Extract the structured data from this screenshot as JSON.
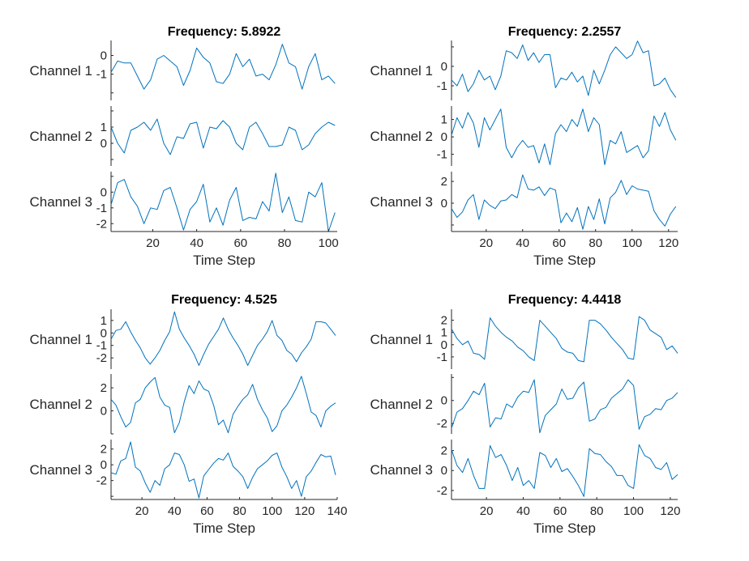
{
  "chart_data": [
    {
      "type": "line",
      "title": "Frequency: 5.8922",
      "xlabel": "Time Step",
      "xlim": [
        1,
        104
      ],
      "xticks": [
        20,
        40,
        60,
        80,
        100
      ],
      "xtick_labels": [
        "20",
        "40",
        "60",
        "80",
        "100"
      ],
      "time_steps": {
        "start": 1,
        "step": 3
      },
      "series": [
        {
          "name": "Channel 1",
          "ylim": [
            -2.4,
            0.8
          ],
          "yticks": [
            0,
            -1,
            -2
          ],
          "ytick_labels": [
            "0",
            "-1",
            ""
          ],
          "values": [
            -0.9,
            -0.3,
            -0.4,
            -0.4,
            -1.1,
            -1.8,
            -1.3,
            -0.2,
            0.0,
            -0.3,
            -0.6,
            -1.6,
            -0.8,
            0.4,
            -0.1,
            -0.4,
            -1.4,
            -1.5,
            -1.0,
            0.1,
            -0.6,
            -0.2,
            -1.1,
            -1.0,
            -1.3,
            -0.5,
            0.6,
            -0.4,
            -0.6,
            -1.8,
            -0.6,
            0.1,
            -1.3,
            -1.1,
            -1.5
          ]
        },
        {
          "name": "Channel 2",
          "ylim": [
            -1.4,
            2.3
          ],
          "yticks": [
            2,
            1,
            0,
            -1
          ],
          "ytick_labels": [
            "",
            "1",
            "0",
            ""
          ],
          "values": [
            1.0,
            0.0,
            -0.6,
            0.8,
            1.0,
            1.3,
            0.8,
            1.5,
            0.0,
            -0.7,
            0.4,
            0.3,
            1.2,
            1.3,
            -0.3,
            1.0,
            0.9,
            1.4,
            1.0,
            0.0,
            -0.4,
            1.0,
            1.3,
            0.6,
            -0.2,
            -0.2,
            -0.1,
            1.0,
            0.8,
            -0.4,
            -0.1,
            0.6,
            1.0,
            1.3,
            1.1
          ]
        },
        {
          "name": "Channel 3",
          "ylim": [
            -2.5,
            1.3
          ],
          "yticks": [
            1,
            0,
            -1,
            -2
          ],
          "ytick_labels": [
            "",
            "0",
            "-1",
            "-2"
          ],
          "values": [
            -0.8,
            0.6,
            0.8,
            -0.3,
            -0.9,
            -2.0,
            -1.0,
            -1.1,
            0.1,
            0.3,
            -1.0,
            -2.4,
            -1.1,
            -0.6,
            0.5,
            -1.9,
            -1.0,
            -2.1,
            -0.5,
            0.3,
            -1.8,
            -1.6,
            -1.7,
            -0.6,
            -1.2,
            1.2,
            -1.3,
            -0.3,
            -1.8,
            -1.9,
            0.0,
            -0.3,
            0.6,
            -2.5,
            -1.3
          ]
        }
      ]
    },
    {
      "type": "line",
      "title": "Frequency: 2.2557",
      "xlabel": "Time Step",
      "xlim": [
        1,
        125
      ],
      "xticks": [
        20,
        40,
        60,
        80,
        100,
        120
      ],
      "xtick_labels": [
        "20",
        "40",
        "60",
        "80",
        "100",
        "120"
      ],
      "time_steps": {
        "start": 1,
        "step": 3
      },
      "series": [
        {
          "name": "Channel 1",
          "ylim": [
            -1.75,
            1.33
          ],
          "yticks": [
            1,
            0,
            -1
          ],
          "ytick_labels": [
            "",
            "0",
            "-1"
          ],
          "values": [
            -0.7,
            -1.0,
            -0.4,
            -1.3,
            -0.9,
            -0.2,
            -0.7,
            -0.5,
            -1.2,
            -0.5,
            0.8,
            0.7,
            0.4,
            1.1,
            0.3,
            0.7,
            0.2,
            0.6,
            0.6,
            -1.1,
            -0.6,
            -0.7,
            -0.3,
            -0.8,
            -0.5,
            -1.5,
            -0.2,
            -0.9,
            -0.2,
            0.6,
            1.0,
            0.7,
            0.4,
            0.6,
            1.3,
            0.7,
            0.8,
            -1.0,
            -0.9,
            -0.6,
            -1.2,
            -1.6
          ]
        },
        {
          "name": "Channel 2",
          "ylim": [
            -1.67,
            1.77
          ],
          "yticks": [
            1,
            0,
            -1
          ],
          "ytick_labels": [
            "1",
            "0",
            "-1"
          ],
          "values": [
            0.1,
            1.1,
            0.5,
            1.4,
            0.8,
            -0.6,
            1.1,
            0.4,
            1.0,
            1.6,
            -0.6,
            -1.2,
            -0.6,
            -0.2,
            -0.6,
            -0.5,
            -1.5,
            -0.4,
            -1.6,
            0.2,
            0.7,
            0.3,
            1.0,
            0.6,
            1.6,
            0.3,
            1.1,
            0.7,
            -1.6,
            -0.2,
            -0.4,
            0.3,
            -0.9,
            -0.7,
            -0.5,
            -1.2,
            -0.8,
            1.2,
            0.6,
            1.4,
            0.4,
            -0.2
          ]
        },
        {
          "name": "Channel 3",
          "ylim": [
            -2.6,
            2.9
          ],
          "yticks": [
            2,
            0,
            -2
          ],
          "ytick_labels": [
            "2",
            "0",
            ""
          ],
          "values": [
            -0.5,
            -1.3,
            -0.8,
            0.3,
            0.8,
            -1.5,
            0.3,
            -0.2,
            -0.5,
            0.2,
            0.3,
            0.8,
            0.5,
            2.6,
            1.3,
            1.2,
            1.5,
            0.7,
            1.4,
            1.2,
            -1.8,
            -0.9,
            -1.7,
            -0.4,
            -2.4,
            -0.3,
            -1.5,
            0.4,
            -1.9,
            0.5,
            1.0,
            2.1,
            0.8,
            1.6,
            1.3,
            1.2,
            1.1,
            -0.7,
            -1.5,
            -2.1,
            -1.0,
            -0.3
          ]
        }
      ]
    },
    {
      "type": "line",
      "title": "Frequency: 4.525",
      "xlabel": "Time Step",
      "xlim": [
        1,
        140
      ],
      "xticks": [
        20,
        40,
        60,
        80,
        100,
        120,
        140
      ],
      "xtick_labels": [
        "20",
        "40",
        "60",
        "80",
        "100",
        "120",
        "140"
      ],
      "time_steps": {
        "start": 1,
        "step": 3
      },
      "series": [
        {
          "name": "Channel 1",
          "ylim": [
            -2.9,
            1.9
          ],
          "yticks": [
            1,
            0,
            -1,
            -2
          ],
          "ytick_labels": [
            "1",
            "0",
            "-1",
            "-2"
          ],
          "values": [
            -0.5,
            0.2,
            0.3,
            0.9,
            0.1,
            -0.6,
            -1.2,
            -2.0,
            -2.5,
            -2.0,
            -1.4,
            -0.6,
            0.1,
            1.7,
            0.3,
            -0.4,
            -1.0,
            -1.7,
            -2.6,
            -1.7,
            -0.9,
            -0.3,
            0.3,
            1.2,
            0.3,
            -0.4,
            -1.0,
            -1.7,
            -2.6,
            -1.8,
            -1.0,
            -0.5,
            0.1,
            1.0,
            -0.2,
            -0.6,
            -1.4,
            -1.7,
            -2.3,
            -1.6,
            -1.1,
            -0.5,
            0.9,
            0.9,
            0.8,
            0.3,
            -0.2
          ]
        },
        {
          "name": "Channel 2",
          "ylim": [
            -2.0,
            3.2
          ],
          "yticks": [
            2,
            0,
            -2
          ],
          "ytick_labels": [
            "2",
            "0",
            ""
          ],
          "values": [
            1.0,
            0.5,
            -0.5,
            -1.4,
            -1.0,
            0.7,
            1.0,
            2.0,
            2.5,
            2.9,
            1.2,
            0.5,
            0.3,
            -1.9,
            -1.0,
            0.8,
            2.2,
            1.5,
            2.6,
            1.9,
            1.7,
            0.5,
            -1.2,
            -0.8,
            -1.9,
            -0.3,
            0.4,
            1.0,
            1.4,
            2.3,
            1.0,
            0.1,
            -0.6,
            -1.8,
            -1.3,
            0.0,
            0.5,
            1.2,
            2.0,
            3.0,
            1.5,
            -0.1,
            -0.4,
            -1.4,
            0.0,
            0.4,
            0.7
          ]
        },
        {
          "name": "Channel 3",
          "ylim": [
            -4.4,
            3.2
          ],
          "yticks": [
            2,
            0,
            -2,
            -4
          ],
          "ytick_labels": [
            "2",
            "0",
            "-2",
            ""
          ],
          "values": [
            -1.0,
            -1.2,
            0.5,
            0.8,
            2.9,
            -0.3,
            -0.8,
            -2.3,
            -3.5,
            -2.0,
            -2.6,
            -0.5,
            0.0,
            1.5,
            1.3,
            0.0,
            -2.1,
            -1.8,
            -4.2,
            -1.4,
            -0.6,
            0.2,
            0.8,
            0.6,
            1.5,
            -0.2,
            -0.8,
            -1.5,
            -3.0,
            -1.6,
            -0.5,
            0.0,
            0.5,
            1.2,
            1.5,
            -0.3,
            -1.5,
            -3.0,
            -2.0,
            -4.0,
            -1.5,
            -0.8,
            0.3,
            1.3,
            1.0,
            1.1,
            -1.3
          ]
        }
      ]
    },
    {
      "type": "line",
      "title": "Frequency: 4.4418",
      "xlabel": "Time Step",
      "xlim": [
        1,
        124
      ],
      "xticks": [
        20,
        40,
        60,
        80,
        100,
        120
      ],
      "xtick_labels": [
        "20",
        "40",
        "60",
        "80",
        "100",
        "120"
      ],
      "time_steps": {
        "start": 1,
        "step": 3
      },
      "series": [
        {
          "name": "Channel 1",
          "ylim": [
            -2.0,
            2.9
          ],
          "yticks": [
            2,
            1,
            0,
            -1
          ],
          "ytick_labels": [
            "2",
            "1",
            "0",
            "-1"
          ],
          "values": [
            1.3,
            0.5,
            0.0,
            0.3,
            -0.7,
            -0.8,
            -1.2,
            2.2,
            1.5,
            1.0,
            0.6,
            0.3,
            -0.2,
            -0.5,
            -1.0,
            -1.3,
            2.0,
            1.5,
            1.0,
            0.5,
            -0.3,
            -0.6,
            -0.7,
            -1.3,
            -1.4,
            2.0,
            2.0,
            1.7,
            1.2,
            0.6,
            0.1,
            -0.4,
            -1.1,
            -1.2,
            2.3,
            2.0,
            1.2,
            0.9,
            0.6,
            -0.4,
            -0.1,
            -0.7
          ]
        },
        {
          "name": "Channel 2",
          "ylim": [
            -2.9,
            2.3
          ],
          "yticks": [
            2,
            0,
            -2
          ],
          "ytick_labels": [
            "",
            "0",
            "-2"
          ],
          "values": [
            -2.4,
            -1.0,
            -0.7,
            0.0,
            0.8,
            0.5,
            1.5,
            -2.3,
            -1.5,
            -1.6,
            -0.3,
            -0.6,
            0.3,
            0.8,
            0.7,
            1.8,
            -2.8,
            -1.3,
            -0.8,
            -0.3,
            1.0,
            0.1,
            0.2,
            1.1,
            1.6,
            -1.8,
            -1.6,
            -0.8,
            -0.6,
            0.2,
            0.6,
            1.0,
            1.8,
            1.3,
            -2.5,
            -1.4,
            -1.2,
            -0.7,
            -0.8,
            0.0,
            0.2,
            0.7
          ]
        },
        {
          "name": "Channel 3",
          "ylim": [
            -2.9,
            3.1
          ],
          "yticks": [
            2,
            0,
            -2
          ],
          "ytick_labels": [
            "2",
            "0",
            "-2"
          ],
          "values": [
            2.1,
            0.5,
            -0.2,
            1.2,
            -0.5,
            -1.8,
            -1.8,
            2.5,
            1.3,
            1.6,
            0.5,
            -1.0,
            0.3,
            -1.5,
            -1.0,
            -1.8,
            1.8,
            1.5,
            0.3,
            1.2,
            -0.1,
            0.2,
            -0.6,
            -1.5,
            -2.6,
            2.2,
            1.7,
            1.6,
            0.9,
            0.4,
            -0.5,
            -0.5,
            -1.5,
            -1.8,
            2.6,
            1.5,
            1.2,
            0.3,
            0.1,
            0.8,
            -0.9,
            -0.4
          ]
        }
      ]
    }
  ],
  "colors": {
    "line": "#0072BD",
    "axis": "#262626",
    "text": "#262626",
    "title": "#000000"
  },
  "grid": false
}
